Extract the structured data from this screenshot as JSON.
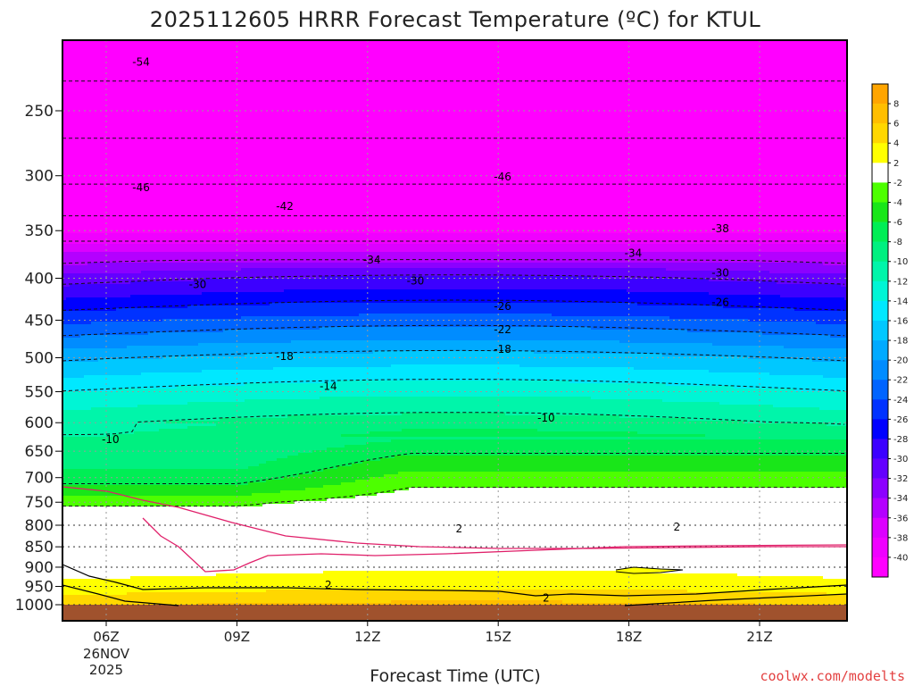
{
  "chart_data": {
    "type": "heatmap",
    "title": "2025112605 HRRR Forecast Temperature (ºC) for KTUL",
    "xlabel": "Forecast Time (UTC)",
    "ylabel": "",
    "credit": "coolwx.com/modelts",
    "x_ticks": [
      {
        "value": 6,
        "label": "06Z",
        "sub1": "26NOV",
        "sub2": "2025"
      },
      {
        "value": 9,
        "label": "09Z"
      },
      {
        "value": 12,
        "label": "12Z"
      },
      {
        "value": 15,
        "label": "15Z"
      },
      {
        "value": 18,
        "label": "18Z"
      },
      {
        "value": 21,
        "label": "21Z"
      }
    ],
    "xlim": [
      5,
      23
    ],
    "y_ticks": [
      250,
      300,
      350,
      400,
      450,
      500,
      550,
      600,
      650,
      700,
      750,
      800,
      850,
      900,
      950,
      1000
    ],
    "ylim": [
      200,
      1040
    ],
    "grid": true,
    "legend_position": "right",
    "color_scale": [
      {
        "min": 8,
        "max": 10,
        "color": "#ffa500"
      },
      {
        "min": 6,
        "max": 8,
        "color": "#ffbe00"
      },
      {
        "min": 4,
        "max": 6,
        "color": "#ffd700"
      },
      {
        "min": 2,
        "max": 4,
        "color": "#ffff00"
      },
      {
        "min": -2,
        "max": 2,
        "color": "#ffffff"
      },
      {
        "min": -4,
        "max": -2,
        "color": "#4dff00"
      },
      {
        "min": -6,
        "max": -4,
        "color": "#19e619"
      },
      {
        "min": -8,
        "max": -6,
        "color": "#00ee55"
      },
      {
        "min": -10,
        "max": -8,
        "color": "#00f080"
      },
      {
        "min": -12,
        "max": -10,
        "color": "#00f5aa"
      },
      {
        "min": -14,
        "max": -12,
        "color": "#00f5d5"
      },
      {
        "min": -16,
        "max": -14,
        "color": "#00e8ff"
      },
      {
        "min": -18,
        "max": -16,
        "color": "#00c8ff"
      },
      {
        "min": -20,
        "max": -18,
        "color": "#00aaff"
      },
      {
        "min": -22,
        "max": -20,
        "color": "#008cff"
      },
      {
        "min": -24,
        "max": -22,
        "color": "#0064ff"
      },
      {
        "min": -26,
        "max": -24,
        "color": "#0032ff"
      },
      {
        "min": -28,
        "max": -26,
        "color": "#0000ff"
      },
      {
        "min": -30,
        "max": -28,
        "color": "#3c00ff"
      },
      {
        "min": -32,
        "max": -30,
        "color": "#6400ff"
      },
      {
        "min": -34,
        "max": -32,
        "color": "#8c00ff"
      },
      {
        "min": -36,
        "max": -34,
        "color": "#b400ff"
      },
      {
        "min": -38,
        "max": -36,
        "color": "#dc00ff"
      },
      {
        "min": -40,
        "max": -38,
        "color": "#f000ff"
      },
      {
        "min": -60,
        "max": -40,
        "color": "#ff00ff"
      }
    ],
    "legend_labels": [
      "8",
      "6",
      "4",
      "2",
      "-2",
      "-4",
      "-6",
      "-8",
      "-10",
      "-12",
      "-14",
      "-16",
      "-18",
      "-20",
      "-22",
      "-24",
      "-26",
      "-28",
      "-30",
      "-32",
      "-34",
      "-36",
      "-38",
      "-40"
    ],
    "contour_labels": [
      {
        "text": "-54",
        "x": 6.8,
        "p": 218
      },
      {
        "text": "-46",
        "x": 6.8,
        "p": 310
      },
      {
        "text": "-46",
        "x": 15.1,
        "p": 301
      },
      {
        "text": "-42",
        "x": 10.1,
        "p": 327
      },
      {
        "text": "-38",
        "x": 20.1,
        "p": 348
      },
      {
        "text": "-34",
        "x": 12.1,
        "p": 380
      },
      {
        "text": "-34",
        "x": 18.1,
        "p": 373
      },
      {
        "text": "-30",
        "x": 8.1,
        "p": 407
      },
      {
        "text": "-30",
        "x": 13.1,
        "p": 403
      },
      {
        "text": "-30",
        "x": 20.1,
        "p": 394
      },
      {
        "text": "-26",
        "x": 15.1,
        "p": 433
      },
      {
        "text": "-26",
        "x": 20.1,
        "p": 428
      },
      {
        "text": "-22",
        "x": 15.1,
        "p": 462
      },
      {
        "text": "-18",
        "x": 10.1,
        "p": 498
      },
      {
        "text": "-18",
        "x": 15.1,
        "p": 488
      },
      {
        "text": "-14",
        "x": 11.1,
        "p": 542
      },
      {
        "text": "-10",
        "x": 6.1,
        "p": 629
      },
      {
        "text": "-10",
        "x": 16.1,
        "p": 592
      },
      {
        "text": "2",
        "x": 14.1,
        "p": 808
      },
      {
        "text": "2",
        "x": 19.1,
        "p": 804
      },
      {
        "text": "2",
        "x": 11.1,
        "p": 946
      },
      {
        "text": "2",
        "x": 16.1,
        "p": 981
      }
    ]
  }
}
